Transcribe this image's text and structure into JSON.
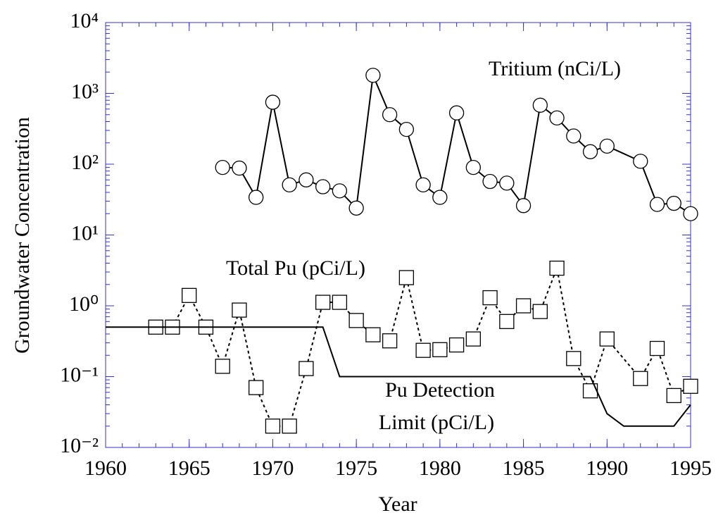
{
  "chart_data": {
    "type": "line",
    "ylog": true,
    "xlabel": "Year",
    "ylabel": "Groundwater Concentration",
    "xlim": [
      1960,
      1995
    ],
    "xticks": [
      1960,
      1965,
      1970,
      1975,
      1980,
      1985,
      1990,
      1995
    ],
    "ylim": [
      0.01,
      10000
    ],
    "yticks": [
      {
        "value": 10000,
        "label": "10⁴"
      },
      {
        "value": 1000,
        "label": "10³"
      },
      {
        "value": 100,
        "label": "10²"
      },
      {
        "value": 10,
        "label": "10¹"
      },
      {
        "value": 1,
        "label": "10⁰"
      },
      {
        "value": 0.1,
        "label": "10⁻¹"
      },
      {
        "value": 0.01,
        "label": "10⁻²"
      }
    ],
    "frame_color": "#3333cc",
    "series": [
      {
        "name": "Tritium (nCi/L)",
        "color": "#000000",
        "marker": "circle",
        "linestyle": "solid",
        "x": [
          1967,
          1968,
          1969,
          1970,
          1971,
          1972,
          1973,
          1974,
          1975,
          1976,
          1977,
          1978,
          1979,
          1980,
          1981,
          1982,
          1983,
          1984,
          1985,
          1986,
          1987,
          1988,
          1989,
          1990,
          1992,
          1993,
          1994,
          1995
        ],
        "values": [
          90,
          88,
          34,
          750,
          51,
          60,
          48,
          42,
          24,
          1800,
          500,
          310,
          51,
          34,
          530,
          90,
          57,
          54,
          26,
          680,
          450,
          250,
          150,
          180,
          110,
          27,
          28,
          20
        ]
      },
      {
        "name": "Total Pu (pCi/L)",
        "color": "#000000",
        "marker": "square",
        "linestyle": "dotted",
        "x": [
          1963,
          1964,
          1965,
          1966,
          1967,
          1968,
          1969,
          1970,
          1971,
          1972,
          1973,
          1974,
          1975,
          1976,
          1977,
          1978,
          1979,
          1980,
          1981,
          1982,
          1983,
          1984,
          1985,
          1986,
          1987,
          1988,
          1989,
          1990,
          1992,
          1993,
          1994,
          1995
        ],
        "values": [
          0.5,
          0.5,
          1.4,
          0.5,
          0.14,
          0.87,
          0.07,
          0.02,
          0.02,
          0.13,
          1.12,
          1.12,
          0.62,
          0.39,
          0.32,
          2.5,
          0.235,
          0.24,
          0.28,
          0.34,
          1.3,
          0.6,
          1.0,
          0.83,
          3.4,
          0.18,
          0.063,
          0.34,
          0.094,
          0.25,
          0.054,
          0.073
        ]
      },
      {
        "color": "#000000",
        "marker": "none",
        "linestyle": "solid",
        "x": [
          1960,
          1973,
          1974,
          1989,
          1990,
          1991,
          1994,
          1995
        ],
        "values": [
          0.5,
          0.5,
          0.1,
          0.1,
          0.03,
          0.02,
          0.02,
          0.04
        ]
      }
    ],
    "annotations": [
      "Pu Detection",
      "Limit (pCi/L)"
    ]
  }
}
